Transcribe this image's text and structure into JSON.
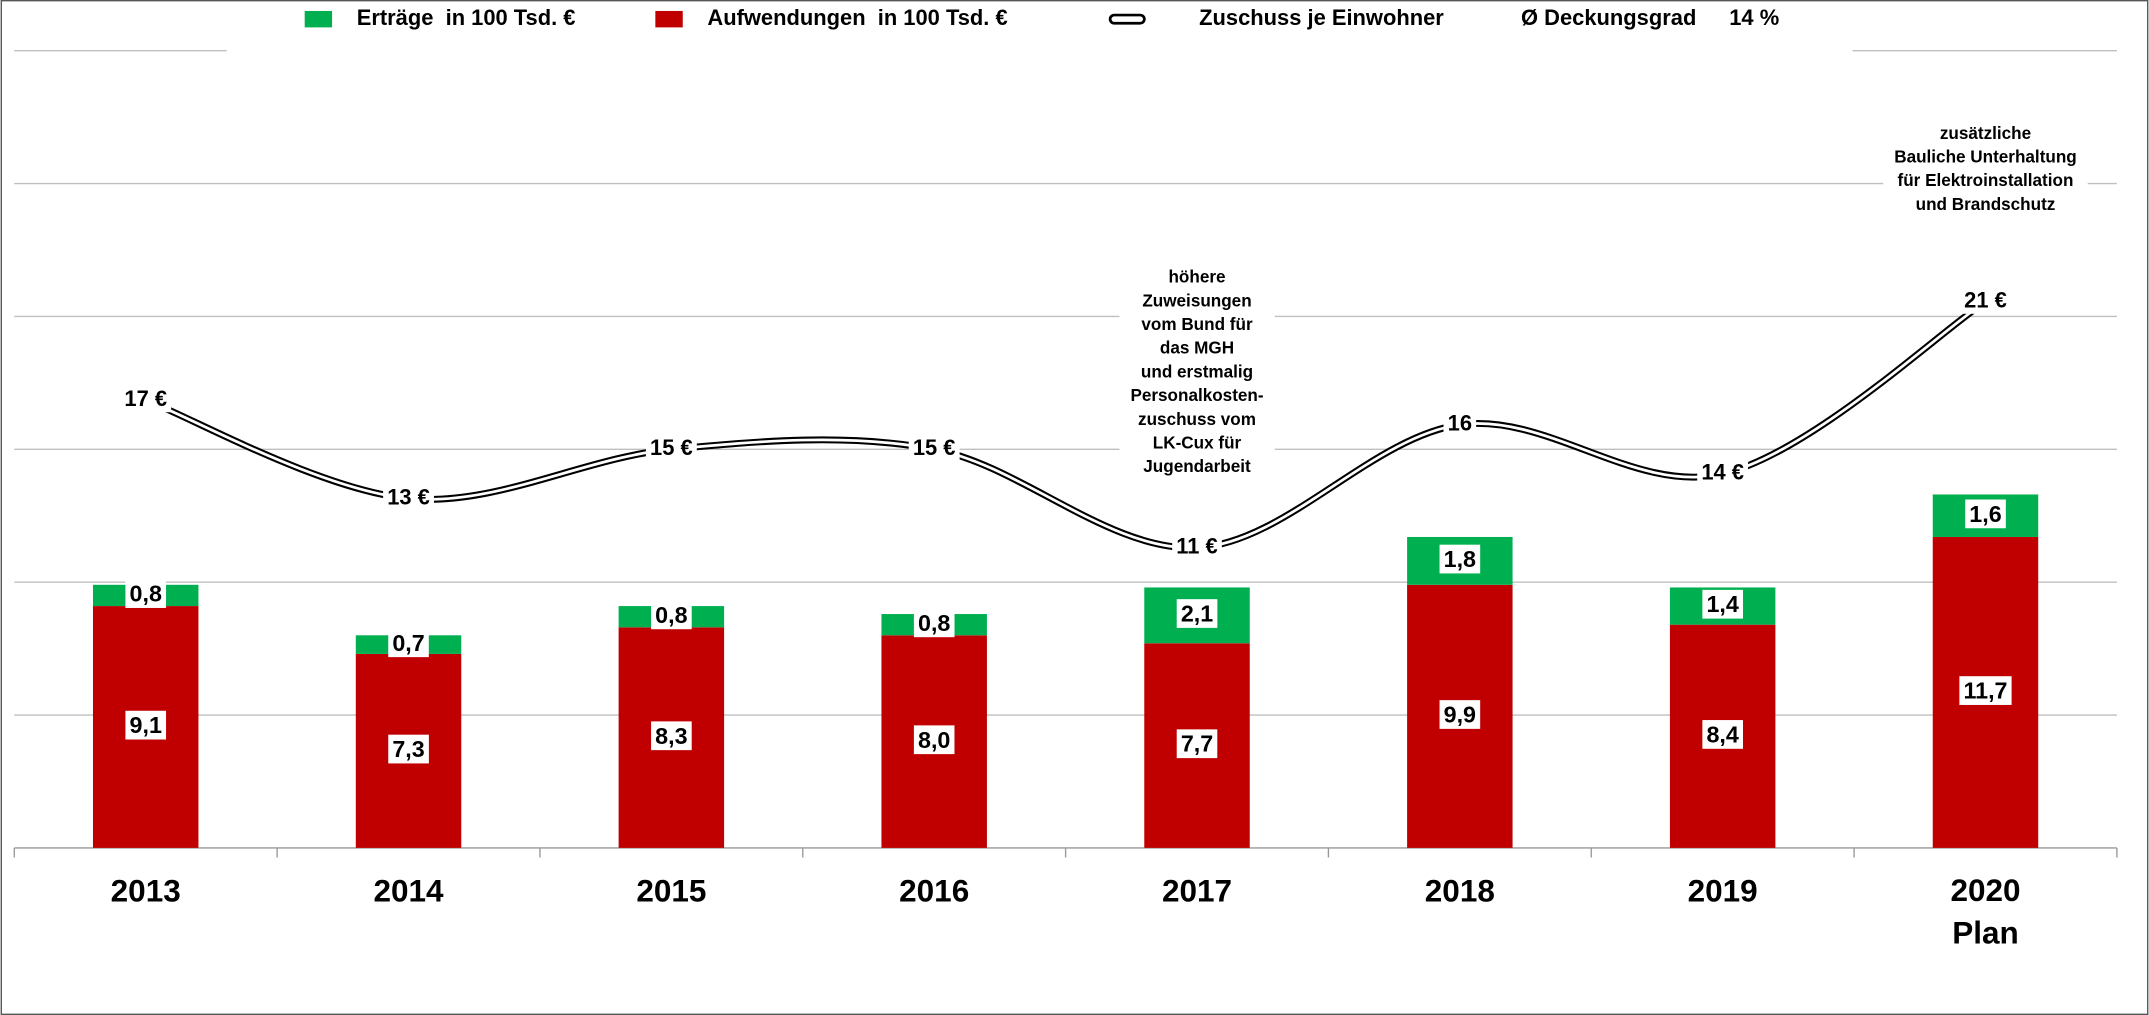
{
  "chart_data": {
    "type": "bar",
    "stacked": true,
    "categories": [
      "2013",
      "2014",
      "2015",
      "2016",
      "2017",
      "2018",
      "2019",
      "2020\nPlan"
    ],
    "series": [
      {
        "name": "Erträge  in 100 Tsd. €",
        "color": "#00b050",
        "values": [
          0.8,
          0.7,
          0.8,
          0.8,
          2.1,
          1.8,
          1.4,
          1.6
        ],
        "value_labels": [
          "0,8",
          "0,7",
          "0,8",
          "0,8",
          "2,1",
          "1,8",
          "1,4",
          "1,6"
        ]
      },
      {
        "name": "Aufwendungen  in 100 Tsd. €",
        "color": "#c00000",
        "values": [
          9.1,
          7.3,
          8.3,
          8.0,
          7.7,
          9.9,
          8.4,
          11.7
        ],
        "value_labels": [
          "9,1",
          "7,3",
          "8,3",
          "8,0",
          "7,7",
          "9,9",
          "8,4",
          "11,7"
        ]
      },
      {
        "name": "Zuschuss je Einwohner",
        "type": "line",
        "axis": "y2",
        "color": "#000000",
        "values": [
          17,
          13,
          15,
          15,
          11,
          16,
          14,
          21
        ],
        "value_labels": [
          "17 €",
          "13 €",
          "15 €",
          "15 €",
          "11 €",
          "16",
          "14 €",
          "21 €"
        ]
      }
    ],
    "legend_note": {
      "label": "Ø Deckungsgrad",
      "value": "14 %"
    },
    "ylim": [
      0,
      30
    ],
    "yticks": [
      0,
      5,
      10,
      15,
      20,
      25,
      30
    ],
    "y2lim": [
      -1.2,
      31.2
    ],
    "grid": true,
    "annotations": [
      {
        "category": 4,
        "lines": [
          "höhere",
          "Zuweisungen",
          "vom Bund für",
          "das MGH",
          "und erstmalig",
          "Personalkosten-",
          "zuschuss vom",
          "LK-Cux für",
          "Jugendarbeit"
        ]
      },
      {
        "category": 7,
        "lines": [
          "zusätzliche",
          "Bauliche Unterhaltung",
          "für Elektroinstallation",
          "und Brandschutz"
        ]
      }
    ]
  }
}
